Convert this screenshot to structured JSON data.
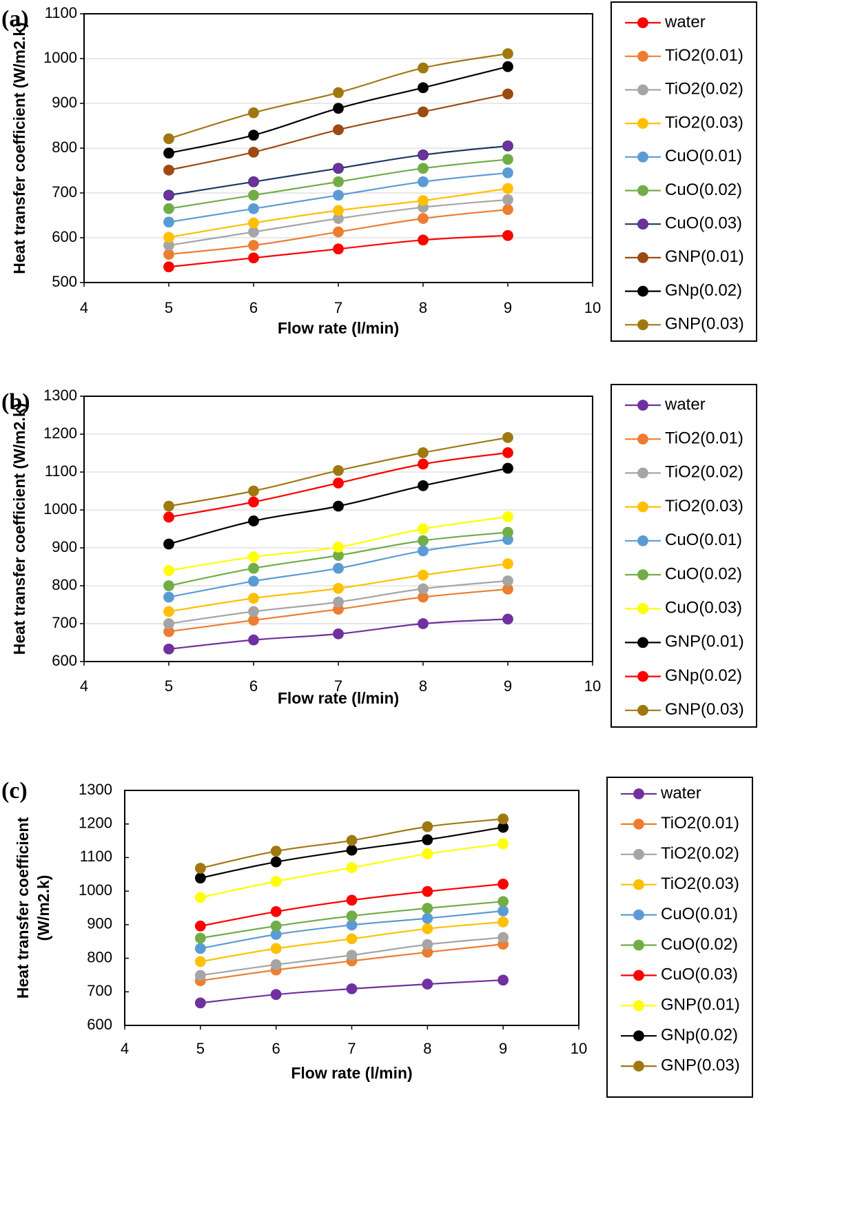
{
  "chart_data": [
    {
      "panel_label": "(a)",
      "type": "line",
      "xlabel": "Flow rate (l/min)",
      "ylabel": [
        "Heat transfer coefficient (W/m2.k)"
      ],
      "xlim": [
        4,
        10
      ],
      "ylim": [
        500,
        1100
      ],
      "xticks": [
        4,
        5,
        6,
        7,
        8,
        9,
        10
      ],
      "yticks": [
        500,
        600,
        700,
        800,
        900,
        1000,
        1100
      ],
      "grid": "horizontal",
      "legend_position": "right",
      "x": [
        5,
        6,
        7,
        8,
        9
      ],
      "series": [
        {
          "name": "water",
          "color": "#FF0000",
          "values": [
            535,
            555,
            575,
            595,
            605
          ]
        },
        {
          "name": "TiO2(0.01)",
          "color": "#ED7D31",
          "values": [
            563,
            583,
            613,
            643,
            663
          ]
        },
        {
          "name": "TiO2(0.02)",
          "color": "#A5A5A5",
          "values": [
            583,
            613,
            643,
            668,
            685
          ]
        },
        {
          "name": "TiO2(0.03)",
          "color": "#FFC000",
          "values": [
            601,
            633,
            661,
            683,
            710
          ]
        },
        {
          "name": "CuO(0.01)",
          "color": "#5B9BD5",
          "values": [
            635,
            665,
            695,
            725,
            745
          ]
        },
        {
          "name": "CuO(0.02)",
          "color": "#70AD47",
          "values": [
            665,
            695,
            725,
            755,
            775
          ]
        },
        {
          "name": "CuO(0.03)",
          "color": "#7030A0",
          "line_color": "#1F3864",
          "values": [
            695,
            725,
            755,
            785,
            805
          ]
        },
        {
          "name": "GNP(0.01)",
          "color": "#9C4A12",
          "values": [
            751,
            791,
            841,
            881,
            921
          ]
        },
        {
          "name": "GNp(0.02)",
          "color": "#000000",
          "values": [
            789,
            829,
            889,
            935,
            982
          ]
        },
        {
          "name": "GNP(0.03)",
          "color": "#A07810",
          "values": [
            821,
            879,
            924,
            979,
            1011
          ]
        }
      ]
    },
    {
      "panel_label": "(b)",
      "type": "line",
      "xlabel": "Flow rate (l/min)",
      "ylabel": [
        "Heat transfer coefficient (W/m2.k)"
      ],
      "xlim": [
        4,
        10
      ],
      "ylim": [
        600,
        1300
      ],
      "xticks": [
        4,
        5,
        6,
        7,
        8,
        9,
        10
      ],
      "yticks": [
        600,
        700,
        800,
        900,
        1000,
        1100,
        1200,
        1300
      ],
      "grid": "horizontal",
      "legend_position": "right",
      "x": [
        5,
        6,
        7,
        8,
        9
      ],
      "series": [
        {
          "name": "water",
          "color": "#7030A0",
          "values": [
            633,
            657,
            673,
            700,
            712
          ]
        },
        {
          "name": "TiO2(0.01)",
          "color": "#ED7D31",
          "values": [
            679,
            709,
            738,
            770,
            791
          ]
        },
        {
          "name": "TiO2(0.02)",
          "color": "#A5A5A5",
          "values": [
            700,
            732,
            757,
            792,
            813
          ]
        },
        {
          "name": "TiO2(0.03)",
          "color": "#FFC000",
          "values": [
            732,
            767,
            793,
            828,
            858
          ]
        },
        {
          "name": "CuO(0.01)",
          "color": "#5B9BD5",
          "values": [
            770,
            812,
            846,
            892,
            922
          ]
        },
        {
          "name": "CuO(0.02)",
          "color": "#70AD47",
          "values": [
            800,
            846,
            880,
            919,
            941
          ]
        },
        {
          "name": "CuO(0.03)",
          "color": "#FFFF00",
          "values": [
            840,
            876,
            902,
            950,
            982
          ]
        },
        {
          "name": "GNP(0.01)",
          "color": "#000000",
          "values": [
            910,
            971,
            1010,
            1064,
            1110
          ]
        },
        {
          "name": "GNp(0.02)",
          "color": "#FF0000",
          "values": [
            981,
            1021,
            1071,
            1121,
            1151
          ]
        },
        {
          "name": "GNP(0.03)",
          "color": "#A07810",
          "values": [
            1010,
            1050,
            1104,
            1151,
            1191
          ]
        }
      ]
    },
    {
      "panel_label": "(c)",
      "type": "line",
      "xlabel": "Flow rate (l/min)",
      "ylabel": [
        "Heat transfer coefficient",
        "(W/m2.k)"
      ],
      "xlim": [
        4,
        10
      ],
      "ylim": [
        600,
        1300
      ],
      "xticks": [
        4,
        5,
        6,
        7,
        8,
        9,
        10
      ],
      "yticks": [
        600,
        700,
        800,
        900,
        1000,
        1100,
        1200,
        1300
      ],
      "grid": "none",
      "legend_position": "right",
      "x": [
        5,
        6,
        7,
        8,
        9
      ],
      "series": [
        {
          "name": "water",
          "color": "#7030A0",
          "values": [
            667,
            692,
            709,
            723,
            735
          ]
        },
        {
          "name": "TiO2(0.01)",
          "color": "#ED7D31",
          "values": [
            733,
            765,
            792,
            818,
            842
          ]
        },
        {
          "name": "TiO2(0.02)",
          "color": "#A5A5A5",
          "values": [
            749,
            781,
            809,
            841,
            862
          ]
        },
        {
          "name": "TiO2(0.03)",
          "color": "#FFC000",
          "values": [
            790,
            829,
            858,
            888,
            908
          ]
        },
        {
          "name": "CuO(0.01)",
          "color": "#5B9BD5",
          "values": [
            829,
            871,
            899,
            919,
            941
          ]
        },
        {
          "name": "CuO(0.02)",
          "color": "#70AD47",
          "values": [
            860,
            896,
            926,
            949,
            969
          ]
        },
        {
          "name": "CuO(0.03)",
          "color": "#FF0000",
          "values": [
            896,
            939,
            973,
            999,
            1021
          ]
        },
        {
          "name": "GNP(0.01)",
          "color": "#FFFF00",
          "values": [
            981,
            1029,
            1070,
            1111,
            1141
          ]
        },
        {
          "name": "GNp(0.02)",
          "color": "#000000",
          "values": [
            1039,
            1087,
            1122,
            1153,
            1190
          ]
        },
        {
          "name": "GNP(0.03)",
          "color": "#A07810",
          "values": [
            1068,
            1119,
            1151,
            1192,
            1215
          ]
        }
      ]
    }
  ]
}
